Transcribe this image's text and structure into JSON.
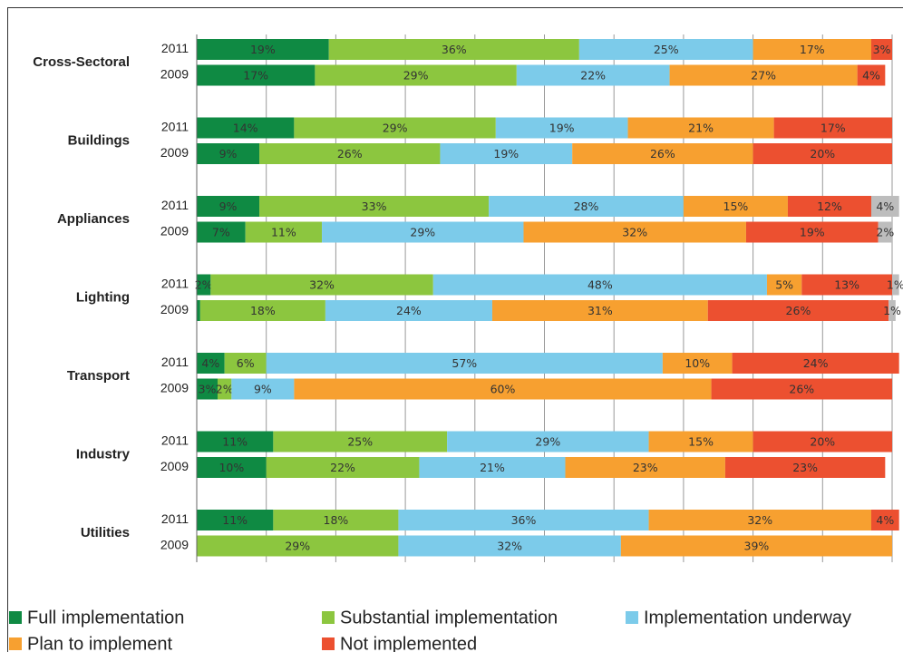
{
  "chart_data": {
    "type": "stacked-barh",
    "groups": [
      "Cross-Sectoral",
      "Buildings",
      "Appliances",
      "Lighting",
      "Transport",
      "Industry",
      "Utilities"
    ],
    "categories": [
      "2011",
      "2009",
      "2011",
      "2009",
      "2011",
      "2009",
      "2011",
      "2009",
      "2011",
      "2009",
      "2011",
      "2009",
      "2011",
      "2009"
    ],
    "xlim": [
      0,
      100
    ],
    "xticks": [
      0,
      10,
      20,
      30,
      40,
      50,
      60,
      70,
      80,
      90,
      100
    ],
    "grid": true,
    "series": [
      {
        "name": "Full implementation",
        "color": "#0f8a43",
        "values": [
          19,
          17,
          14,
          9,
          9,
          7,
          2,
          0.5,
          4,
          3,
          11,
          10,
          11,
          null
        ],
        "value_labels": [
          "19%",
          "17%",
          "14%",
          "9%",
          "9%",
          "7%",
          "2%",
          null,
          "4%",
          "3%",
          "11%",
          "10%",
          "11%",
          null
        ]
      },
      {
        "name": "Substantial implementation",
        "color": "#8cc63f",
        "values": [
          36,
          29,
          29,
          26,
          33,
          11,
          32,
          18,
          6,
          2,
          25,
          22,
          18,
          29
        ],
        "value_labels": [
          "36%",
          "29%",
          "29%",
          "26%",
          "33%",
          "11%",
          "32%",
          "18%",
          "6%",
          "2%",
          "25%",
          "22%",
          "18%",
          "29%"
        ]
      },
      {
        "name": "Implementation underway",
        "color": "#7ccbea",
        "values": [
          25,
          22,
          19,
          19,
          28,
          29,
          48,
          24,
          57,
          9,
          29,
          21,
          36,
          32
        ],
        "value_labels": [
          "25%",
          "22%",
          "19%",
          "19%",
          "28%",
          "29%",
          "48%",
          "24%",
          "57%",
          "9%",
          "29%",
          "21%",
          "36%",
          "32%"
        ]
      },
      {
        "name": "Plan to implement",
        "color": "#f7a030",
        "values": [
          17,
          27,
          21,
          26,
          15,
          32,
          5,
          31,
          10,
          60,
          15,
          23,
          32,
          39
        ],
        "value_labels": [
          "17%",
          "27%",
          "21%",
          "26%",
          "15%",
          "32%",
          "5%",
          "31%",
          "10%",
          "60%",
          "15%",
          "23%",
          "32%",
          "39%"
        ]
      },
      {
        "name": "Not implemented",
        "color": "#ec5030",
        "values": [
          3,
          4,
          17,
          20,
          12,
          19,
          13,
          26,
          24,
          26,
          20,
          23,
          4,
          null
        ],
        "value_labels": [
          "3%",
          "4%",
          "17%",
          "20%",
          "12%",
          "19%",
          "13%",
          "26%",
          "24%",
          "26%",
          "20%",
          "23%",
          "4%",
          null
        ]
      },
      {
        "color": "#bdbdbd",
        "values": [
          null,
          null,
          null,
          null,
          4,
          2,
          1,
          1,
          null,
          null,
          null,
          null,
          null,
          null
        ],
        "value_labels": [
          null,
          null,
          null,
          null,
          "4%",
          "2%",
          "1%",
          "1%",
          null,
          null,
          null,
          null,
          null,
          null
        ]
      }
    ]
  }
}
